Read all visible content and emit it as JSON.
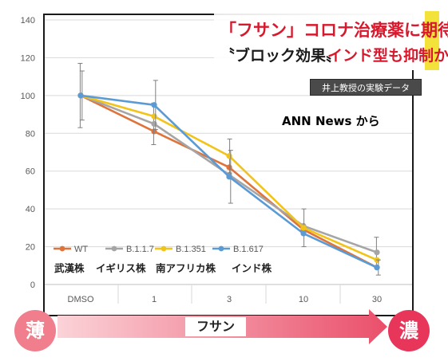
{
  "chart_data": {
    "type": "line",
    "categories": [
      "DMSO",
      "1",
      "3",
      "10",
      "30"
    ],
    "ylim": [
      0,
      140
    ],
    "yticks": [
      "0",
      "20",
      "40",
      "60",
      "80",
      "100",
      "120",
      "140"
    ],
    "grid": "horizontal",
    "series": [
      {
        "name": "WT",
        "color": "#e0733a",
        "values": [
          100,
          81,
          62,
          29,
          9
        ],
        "err": [
          0,
          0,
          0,
          0,
          0
        ]
      },
      {
        "name": "B.1.1.7",
        "color": "#a5a5a5",
        "values": [
          100,
          85,
          58,
          31,
          17
        ],
        "err": [
          17,
          11,
          0,
          0,
          8
        ]
      },
      {
        "name": "B.1.351",
        "color": "#f2c318",
        "values": [
          100,
          89,
          68,
          30,
          13
        ],
        "err": [
          0,
          0,
          9,
          10,
          0
        ]
      },
      {
        "name": "B.1.617",
        "color": "#5b9bd5",
        "values": [
          100,
          95,
          57,
          27,
          9
        ],
        "err": [
          13,
          13,
          14,
          0,
          4
        ]
      }
    ],
    "strain_labels": [
      "武漢株",
      "イギリス株",
      "南アフリカ株",
      "インド株"
    ],
    "legend": "bottom-left"
  },
  "banner": {
    "line1": "「フサン」コロナ治療薬に期待",
    "line2_a": "〝ブロック効果〟",
    "line2_b": "インド型も抑制か"
  },
  "lab_tag": "井上教授の実験データ",
  "credit": "ANN News から",
  "concentration": {
    "low_label": "薄",
    "high_label": "濃",
    "drug_label": "フサン"
  },
  "colors": {
    "banner_red": "#d8182c",
    "banner_yellow": "#f2e23a",
    "circle_low": "#f07e8c",
    "circle_high": "#e8365b"
  }
}
